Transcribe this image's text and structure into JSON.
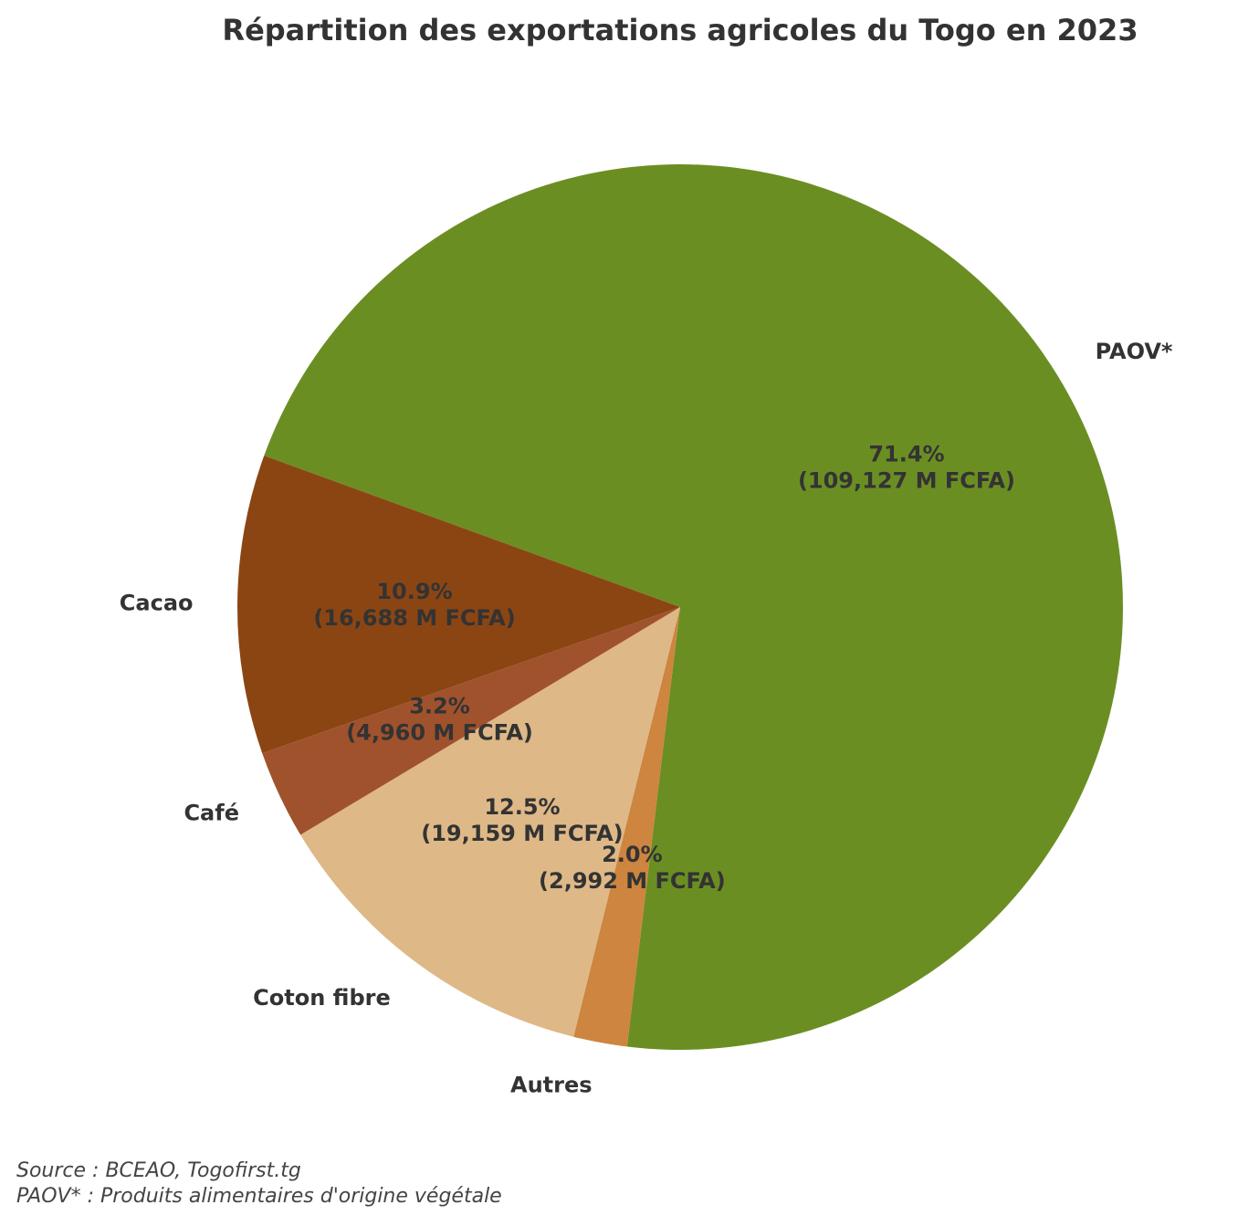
{
  "chart_data": {
    "type": "pie",
    "title": "Répartition des exportations agricoles du Togo en 2023",
    "unit_suffix": "M FCFA",
    "slices": [
      {
        "label": "PAOV*",
        "value": 109127,
        "percent": "71.4%",
        "amount": "(109,127 M FCFA)",
        "color": "#6b8e23"
      },
      {
        "label": "Autres",
        "value": 2992,
        "percent": "2.0%",
        "amount": "(2,992 M FCFA)",
        "color": "#cd853f"
      },
      {
        "label": "Coton fibre",
        "value": 19159,
        "percent": "12.5%",
        "amount": "(19,159 M FCFA)",
        "color": "#deb887"
      },
      {
        "label": "Café",
        "value": 4960,
        "percent": "3.2%",
        "amount": "(4,960 M FCFA)",
        "color": "#a0522d"
      },
      {
        "label": "Cacao",
        "value": 16688,
        "percent": "10.9%",
        "amount": "(16,688 M FCFA)",
        "color": "#8b4513"
      }
    ]
  },
  "footer": {
    "source": "Source : BCEAO, Togofirst.tg",
    "note": "PAOV* : Produits alimentaires d'origine végétale"
  }
}
